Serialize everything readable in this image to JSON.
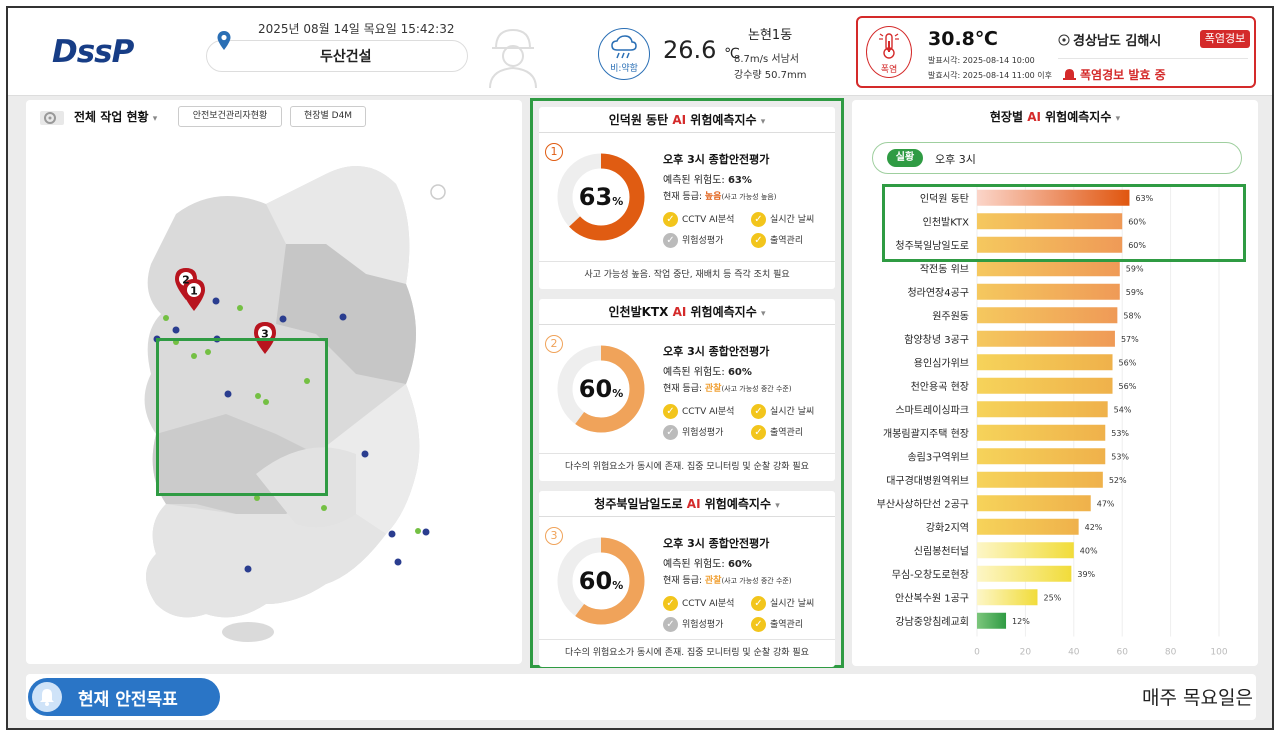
{
  "header": {
    "logo": "DssP",
    "datetime": "2025년 08월 14일 목요일 15:42:32",
    "company": "두산건설",
    "weather": {
      "condition": "비:약함",
      "temperature": "26.6",
      "temperature_unit": "℃",
      "dong": "논현1동",
      "wind": "8.7m/s 서남서",
      "rainfall": "강수량 50.7mm"
    },
    "heat_alert": {
      "icon_label": "폭염",
      "temperature": "30.8℃",
      "issued": "발표시각: 2025-08-14 10:00",
      "effective": "발효시각: 2025-08-14 11:00 이후",
      "region": "경상남도 김해시",
      "badge": "폭염경보",
      "status": "폭염경보 발효 중"
    }
  },
  "left_panel": {
    "title": "전체 작업 현황",
    "tabs": [
      "안전보건관리자현황",
      "현장별 D4M"
    ],
    "pins": [
      "1",
      "2",
      "3"
    ]
  },
  "risk_cards": [
    {
      "site": "인덕원 동탄",
      "title_suffix": "위험예측지수",
      "ai": "AI",
      "rank": "1",
      "percent": 63,
      "percent_label": "63",
      "eval_title": "오후 3시 종합안전평가",
      "predicted_label": "예측된 위험도:",
      "predicted_value": "63%",
      "grade_label": "현재 등급:",
      "grade": "높음",
      "grade_note": "(사고 가능성 높음)",
      "checks": [
        "CCTV AI분석",
        "실시간 날씨",
        "위험성평가",
        "출역관리"
      ],
      "footer": "사고 가능성 높음. 작업 중단, 재배치 등 즉각 조치 필요",
      "color": "#e05c12"
    },
    {
      "site": "인천발KTX",
      "title_suffix": "위험예측지수",
      "ai": "AI",
      "rank": "2",
      "percent": 60,
      "percent_label": "60",
      "eval_title": "오후 3시 종합안전평가",
      "predicted_label": "예측된 위험도:",
      "predicted_value": "60%",
      "grade_label": "현재 등급:",
      "grade": "관찰",
      "grade_note": "(사고 가능성 중간 수준)",
      "checks": [
        "CCTV AI분석",
        "실시간 날씨",
        "위험성평가",
        "출역관리"
      ],
      "footer": "다수의 위험요소가 동시에 존재. 집중 모니터링 및 순찰 강화 필요",
      "color": "#f0a35a"
    },
    {
      "site": "청주북일남일도로",
      "title_suffix": "위험예측지수",
      "ai": "AI",
      "rank": "3",
      "percent": 60,
      "percent_label": "60",
      "eval_title": "오후 3시 종합안전평가",
      "predicted_label": "예측된 위험도:",
      "predicted_value": "60%",
      "grade_label": "현재 등급:",
      "grade": "관찰",
      "grade_note": "(사고 가능성 중간 수준)",
      "checks": [
        "CCTV AI분석",
        "실시간 날씨",
        "위험성평가",
        "출역관리"
      ],
      "footer": "다수의 위험요소가 동시에 존재. 집중 모니터링 및 순찰 강화 필요",
      "color": "#f0a35a"
    }
  ],
  "right_panel": {
    "title_prefix": "현장별",
    "ai": "AI",
    "title_suffix": "위험예측지수",
    "actual_badge": "실황",
    "actual_time": "오후 3시"
  },
  "chart_data": {
    "type": "bar",
    "orientation": "horizontal",
    "categories": [
      "인덕원 동탄",
      "인천발KTX",
      "청주북일남일도로",
      "작전동 위브",
      "청라연장4공구",
      "원주원동",
      "함양창녕 3공구",
      "용인심가위브",
      "천안용곡 현장",
      "스마트레이싱파크",
      "개봉림괄지주택 현장",
      "송림3구역위브",
      "대구경대병원역위브",
      "부산사상하단선 2공구",
      "강화2지역",
      "신림봉천터널",
      "무심-오창도로현장",
      "안산복수원 1공구",
      "강남중앙침례교회"
    ],
    "values": [
      63,
      60,
      60,
      59,
      59,
      58,
      57,
      56,
      56,
      54,
      53,
      53,
      52,
      47,
      42,
      40,
      39,
      25,
      12
    ],
    "value_labels": [
      "63%",
      "60%",
      "60%",
      "59%",
      "59%",
      "58%",
      "57%",
      "56%",
      "56%",
      "54%",
      "53%",
      "53%",
      "52%",
      "47%",
      "42%",
      "40%",
      "39%",
      "25%",
      "12%"
    ],
    "xlim": [
      0,
      100
    ],
    "xticks": [
      "0",
      "20",
      "40",
      "60",
      "80",
      "100"
    ],
    "grid": true
  },
  "bottom": {
    "goal_title": "현재 안전목표",
    "ticker": "매주 목요일은"
  }
}
